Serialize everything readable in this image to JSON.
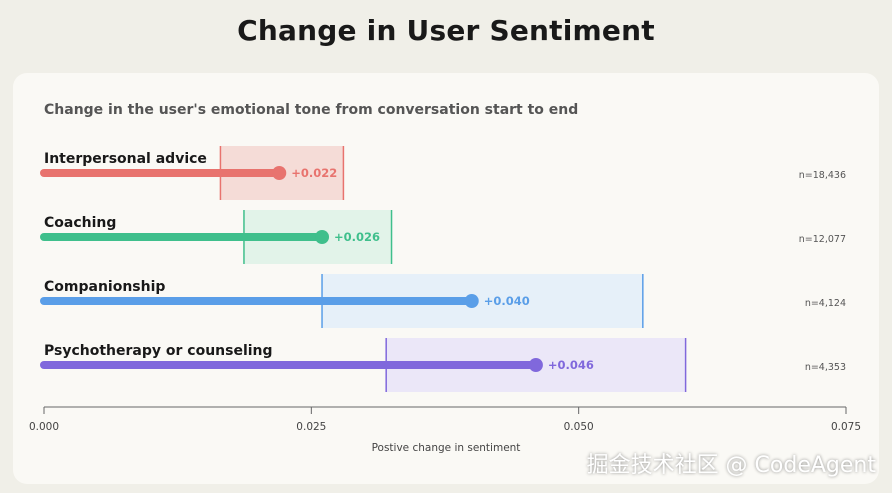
{
  "page": {
    "title": "Change in User Sentiment",
    "subtitle": "Change in the user's emotional tone from conversation start to end",
    "watermark": "掘金技术社区 @ CodeAgent"
  },
  "chart_data": {
    "type": "bar",
    "orientation": "horizontal",
    "xlabel": "Postive change in sentiment",
    "xlim": [
      0,
      0.075
    ],
    "xticks": [
      "0.000",
      "0.025",
      "0.050",
      "0.075"
    ],
    "grid": false,
    "categories": [
      {
        "label": "Interpersonal advice",
        "value": 0.022,
        "value_label": "+0.022",
        "ci": [
          0.0165,
          0.028
        ],
        "n": "n=18,436",
        "color": "#e8736e",
        "band": "#f5dcd7"
      },
      {
        "label": "Coaching",
        "value": 0.026,
        "value_label": "+0.026",
        "ci": [
          0.0187,
          0.0325
        ],
        "n": "n=12,077",
        "color": "#3fbf8c",
        "band": "#e2f3e9"
      },
      {
        "label": "Companionship",
        "value": 0.04,
        "value_label": "+0.040",
        "ci": [
          0.026,
          0.056
        ],
        "n": "n=4,124",
        "color": "#5a9ee8",
        "band": "#e6f0f9"
      },
      {
        "label": "Psychotherapy or counseling",
        "value": 0.046,
        "value_label": "+0.046",
        "ci": [
          0.032,
          0.06
        ],
        "n": "n=4,353",
        "color": "#8068dc",
        "band": "#ebe7f8"
      }
    ]
  }
}
